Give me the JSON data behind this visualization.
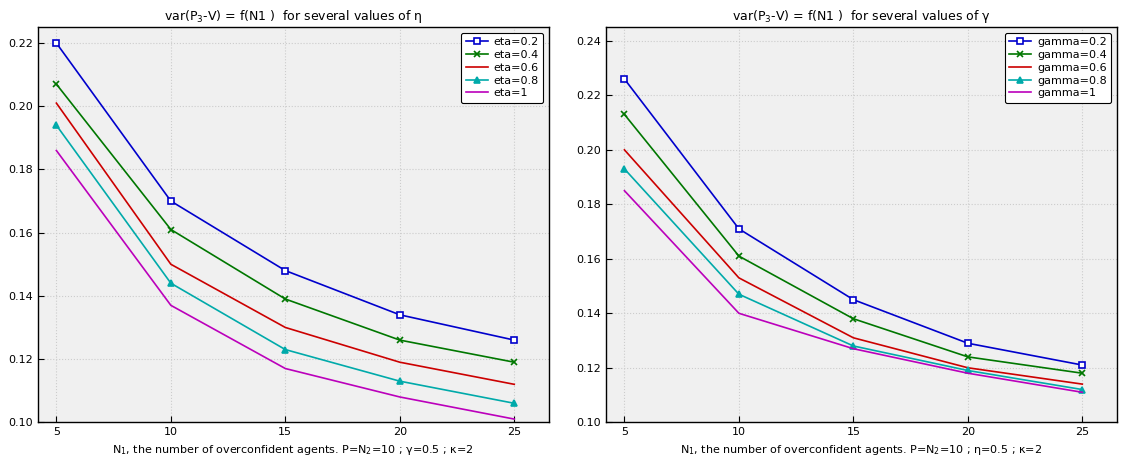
{
  "x": [
    5,
    10,
    15,
    20,
    25
  ],
  "left_title": "var(P$_3$-V) = f(N1 )  for several values of η",
  "left_xlabel": "N$_1$, the number of overconfident agents. P=N$_2$=10 ; γ=0.5 ; κ=2",
  "left_ylim": [
    0.1,
    0.225
  ],
  "left_yticks": [
    0.1,
    0.12,
    0.14,
    0.16,
    0.18,
    0.2,
    0.22
  ],
  "left_series": [
    {
      "label": "eta=0.2",
      "color": "#0000CC",
      "marker": "s",
      "values": [
        0.22,
        0.17,
        0.148,
        0.134,
        0.126
      ]
    },
    {
      "label": "eta=0.4",
      "color": "#007700",
      "marker": "x",
      "values": [
        0.207,
        0.161,
        0.139,
        0.126,
        0.119
      ]
    },
    {
      "label": "eta=0.6",
      "color": "#CC0000",
      "marker": "none",
      "values": [
        0.201,
        0.15,
        0.13,
        0.119,
        0.112
      ]
    },
    {
      "label": "eta=0.8",
      "color": "#00AAAA",
      "marker": "^",
      "values": [
        0.194,
        0.144,
        0.123,
        0.113,
        0.106
      ]
    },
    {
      "label": "eta=1",
      "color": "#BB00BB",
      "marker": "none",
      "values": [
        0.186,
        0.137,
        0.117,
        0.108,
        0.101
      ]
    }
  ],
  "right_title": "var(P$_3$-V) = f(N1 )  for several values of γ",
  "right_xlabel": "N$_1$, the number of overconfident agents. P=N$_2$=10 ; η=0.5 ; κ=2",
  "right_ylim": [
    0.1,
    0.245
  ],
  "right_yticks": [
    0.1,
    0.12,
    0.14,
    0.16,
    0.18,
    0.2,
    0.22,
    0.24
  ],
  "right_series": [
    {
      "label": "gamma=0.2",
      "color": "#0000CC",
      "marker": "s",
      "values": [
        0.226,
        0.171,
        0.145,
        0.129,
        0.121
      ]
    },
    {
      "label": "gamma=0.4",
      "color": "#007700",
      "marker": "x",
      "values": [
        0.213,
        0.161,
        0.138,
        0.124,
        0.118
      ]
    },
    {
      "label": "gamma=0.6",
      "color": "#CC0000",
      "marker": "none",
      "values": [
        0.2,
        0.153,
        0.131,
        0.12,
        0.114
      ]
    },
    {
      "label": "gamma=0.8",
      "color": "#00AAAA",
      "marker": "^",
      "values": [
        0.193,
        0.147,
        0.128,
        0.119,
        0.112
      ]
    },
    {
      "label": "gamma=1",
      "color": "#BB00BB",
      "marker": "none",
      "values": [
        0.185,
        0.14,
        0.127,
        0.118,
        0.111
      ]
    }
  ],
  "bg_color": "#F0F0F0",
  "grid_color": "#CCCCCC",
  "title_fontsize": 9,
  "label_fontsize": 8,
  "tick_fontsize": 8,
  "legend_fontsize": 8
}
